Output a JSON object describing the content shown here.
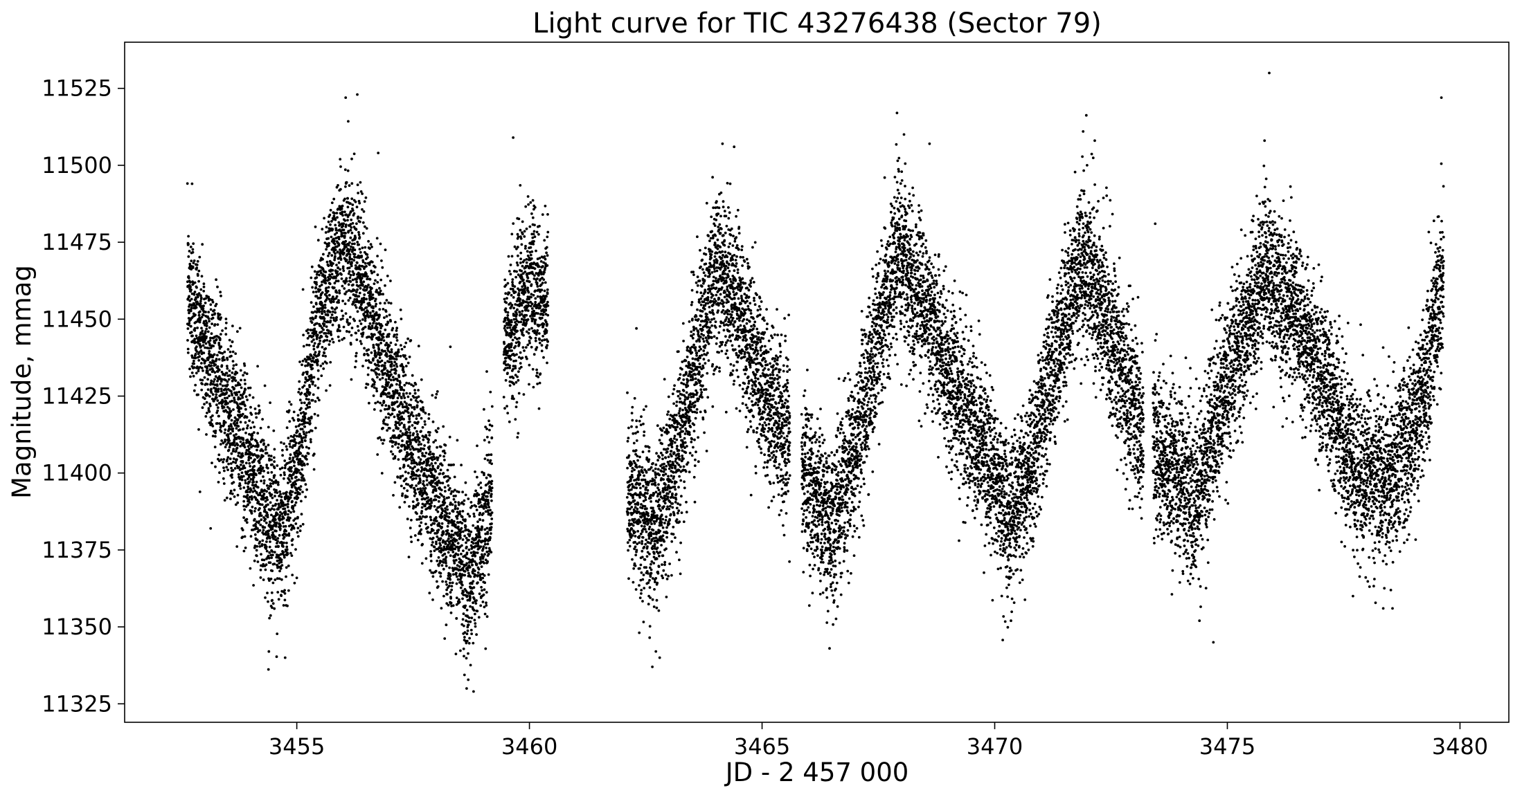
{
  "chart_data": {
    "type": "scatter",
    "title": "Light curve for TIC 43276438 (Sector 79)",
    "xlabel": "JD - 2 457 000",
    "ylabel": "Magnitude, mmag",
    "xlim": [
      3451.3,
      3481.05
    ],
    "ylim": [
      11319,
      11540
    ],
    "x_ticks": [
      3455,
      3460,
      3465,
      3470,
      3475,
      3480
    ],
    "y_ticks": [
      11325,
      11350,
      11375,
      11400,
      11425,
      11450,
      11475,
      11500,
      11525
    ],
    "grid": false,
    "legend": "none",
    "marker_color": "#000000",
    "segments": [
      {
        "x_start": 3452.65,
        "x_end": 3459.2,
        "cadence_days": 0.00139
      },
      {
        "x_start": 3459.45,
        "x_end": 3460.4,
        "cadence_days": 0.00139
      },
      {
        "x_start": 3462.1,
        "x_end": 3465.6,
        "cadence_days": 0.00139
      },
      {
        "x_start": 3465.85,
        "x_end": 3473.2,
        "cadence_days": 0.00139
      },
      {
        "x_start": 3473.4,
        "x_end": 3479.65,
        "cadence_days": 0.00139
      }
    ],
    "trend_points": [
      [
        3452.65,
        11458
      ],
      [
        3453.3,
        11430
      ],
      [
        3454.0,
        11402
      ],
      [
        3454.6,
        11378
      ],
      [
        3455.0,
        11400
      ],
      [
        3455.4,
        11445
      ],
      [
        3455.9,
        11474
      ],
      [
        3456.2,
        11472
      ],
      [
        3456.8,
        11440
      ],
      [
        3457.4,
        11412
      ],
      [
        3458.0,
        11390
      ],
      [
        3458.7,
        11366
      ],
      [
        3459.2,
        11392
      ],
      [
        3459.45,
        11440
      ],
      [
        3460.0,
        11462
      ],
      [
        3460.4,
        11452
      ],
      [
        3462.1,
        11395
      ],
      [
        3462.7,
        11380
      ],
      [
        3463.3,
        11415
      ],
      [
        3464.0,
        11467
      ],
      [
        3464.4,
        11458
      ],
      [
        3465.0,
        11428
      ],
      [
        3465.6,
        11408
      ],
      [
        3465.85,
        11402
      ],
      [
        3466.5,
        11382
      ],
      [
        3467.2,
        11422
      ],
      [
        3467.9,
        11472
      ],
      [
        3468.5,
        11455
      ],
      [
        3469.1,
        11428
      ],
      [
        3469.7,
        11410
      ],
      [
        3470.3,
        11385
      ],
      [
        3470.8,
        11402
      ],
      [
        3471.4,
        11445
      ],
      [
        3471.9,
        11470
      ],
      [
        3472.5,
        11445
      ],
      [
        3473.2,
        11410
      ],
      [
        3473.4,
        11408
      ],
      [
        3474.3,
        11392
      ],
      [
        3475.0,
        11430
      ],
      [
        3475.8,
        11466
      ],
      [
        3476.5,
        11450
      ],
      [
        3477.1,
        11428
      ],
      [
        3477.8,
        11398
      ],
      [
        3478.6,
        11400
      ],
      [
        3479.1,
        11420
      ],
      [
        3479.65,
        11462
      ]
    ],
    "scatter_mmag": 13,
    "outliers": [
      [
        3452.75,
        11494
      ],
      [
        3453.2,
        11412
      ],
      [
        3454.0,
        11369
      ],
      [
        3454.4,
        11342
      ],
      [
        3454.75,
        11340
      ],
      [
        3455.4,
        11480
      ],
      [
        3456.05,
        11522
      ],
      [
        3456.3,
        11523
      ],
      [
        3456.75,
        11504
      ],
      [
        3458.3,
        11441
      ],
      [
        3458.65,
        11330
      ],
      [
        3458.8,
        11329
      ],
      [
        3459.65,
        11509
      ],
      [
        3462.3,
        11447
      ],
      [
        3462.8,
        11340
      ],
      [
        3464.15,
        11507
      ],
      [
        3464.4,
        11506
      ],
      [
        3466.45,
        11343
      ],
      [
        3467.9,
        11517
      ],
      [
        3468.05,
        11510
      ],
      [
        3468.6,
        11507
      ],
      [
        3470.35,
        11352
      ],
      [
        3471.9,
        11511
      ],
      [
        3472.15,
        11508
      ],
      [
        3473.45,
        11481
      ],
      [
        3474.4,
        11352
      ],
      [
        3474.7,
        11345
      ],
      [
        3475.8,
        11508
      ],
      [
        3475.9,
        11530
      ],
      [
        3477.7,
        11360
      ],
      [
        3478.35,
        11356
      ],
      [
        3478.55,
        11356
      ],
      [
        3479.6,
        11522
      ]
    ]
  }
}
